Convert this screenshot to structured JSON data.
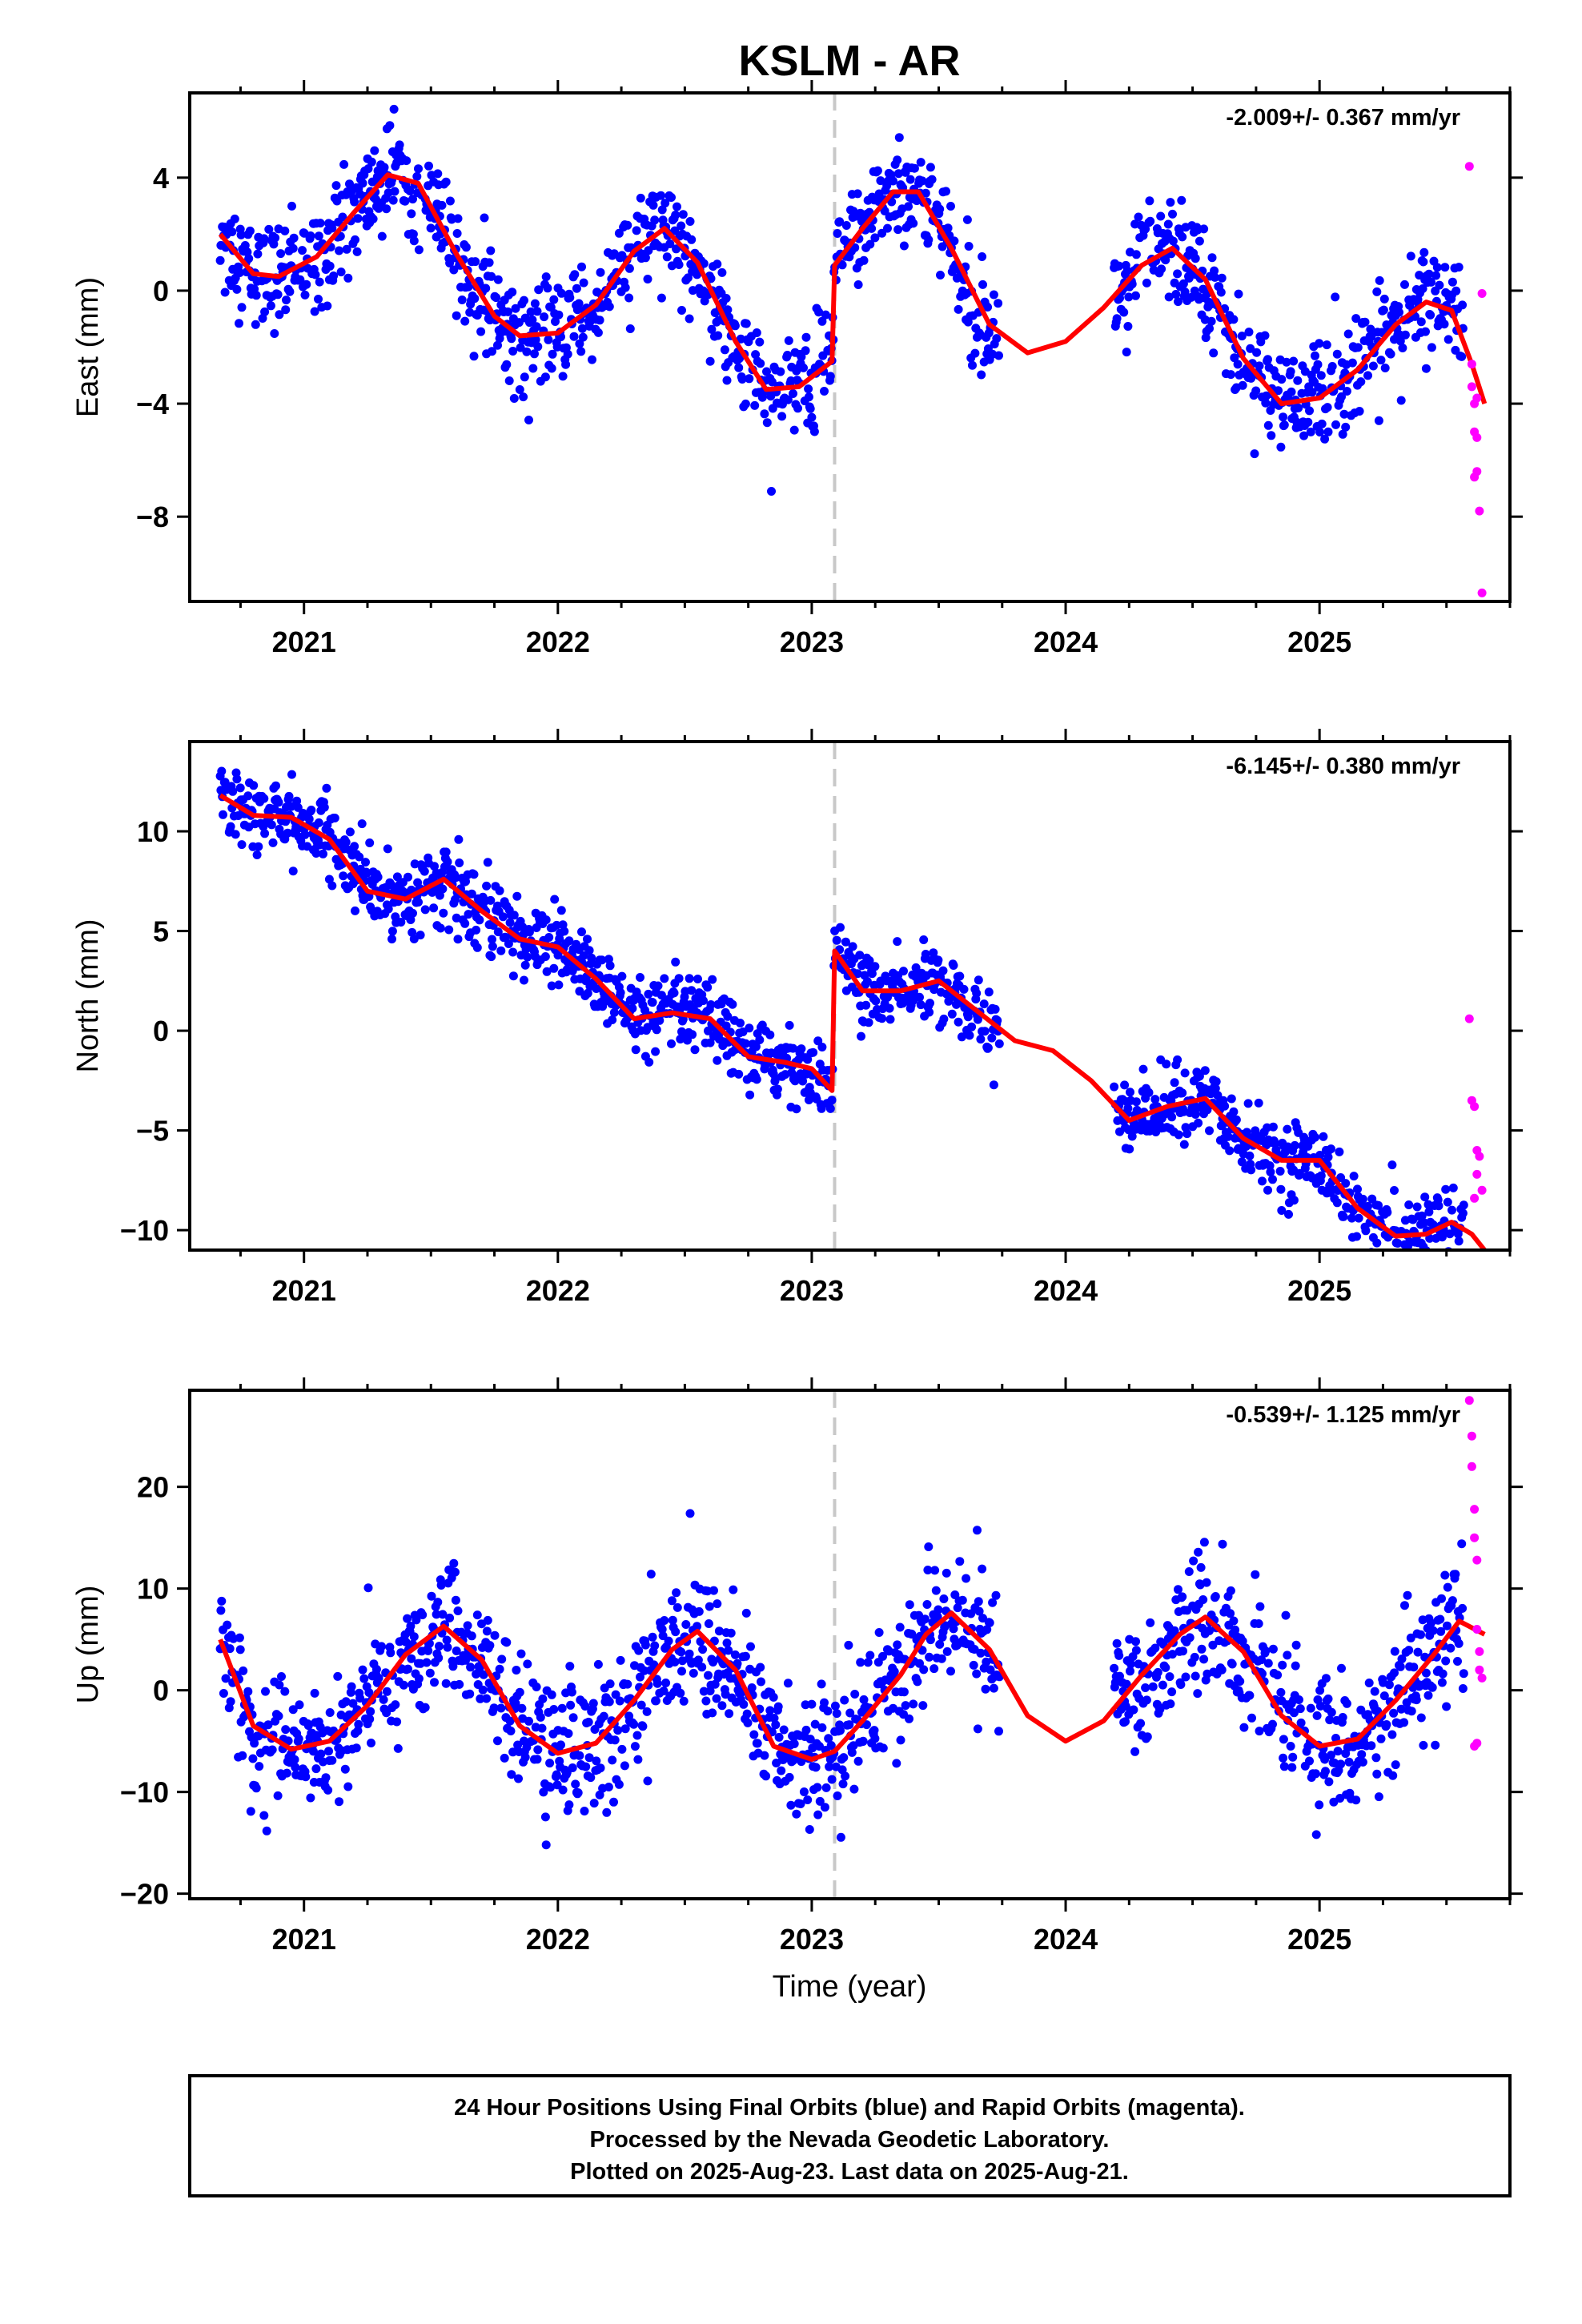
{
  "title": "KSLM - AR",
  "xlabel": "Time (year)",
  "footer": {
    "line1": "24 Hour Positions Using Final Orbits (blue) and Rapid Orbits (magenta).",
    "line2": "Processed by the Nevada Geodetic Laboratory.",
    "line3": "Plotted on 2025-Aug-23. Last data on 2025-Aug-21."
  },
  "colors": {
    "final_orbits": "#0000ff",
    "rapid_orbits": "#ff00ff",
    "model": "#ff0000",
    "event_line": "#c8c8c8"
  },
  "chart_data": [
    {
      "type": "scatter",
      "component": "East",
      "ylabel": "East (mm)",
      "rate": "-2.009+/- 0.367 mm/yr",
      "xlim": [
        2020.55,
        2025.75
      ],
      "ylim": [
        -11,
        7
      ],
      "xticks": [
        2021,
        2022,
        2023,
        2024,
        2025
      ],
      "xtick_labels": [
        "2021",
        "2022",
        "2023",
        "2024",
        "2025"
      ],
      "yticks": [
        4,
        0,
        -4,
        -8
      ],
      "ytick_labels": [
        "4",
        "0",
        "−4",
        "−8"
      ],
      "event_x": 2023.09,
      "gaps": [
        [
          2023.74,
          2024.19
        ]
      ],
      "series": [
        {
          "role": "final_orbits",
          "x_range": [
            2020.67,
            2025.57
          ],
          "trend": -2.009,
          "offset": 2.4,
          "amplitude": 2.6,
          "phase_peak": 0.42,
          "step": 3.5,
          "scatter": 0.9
        },
        {
          "role": "rapid_orbits",
          "x": [
            2025.59,
            2025.6,
            2025.6,
            2025.61,
            2025.61,
            2025.62,
            2025.62,
            2025.63,
            2025.64,
            2025.64,
            2025.62,
            2025.61
          ],
          "y": [
            4.4,
            -2.6,
            -3.4,
            -4.0,
            -5.0,
            -5.2,
            -6.4,
            -7.8,
            -10.7,
            -0.1,
            -3.8,
            -6.6
          ]
        },
        {
          "role": "model",
          "x": [
            2020.67,
            2020.8,
            2020.9,
            2021.05,
            2021.2,
            2021.33,
            2021.45,
            2021.6,
            2021.75,
            2021.85,
            2022.0,
            2022.15,
            2022.3,
            2022.42,
            2022.55,
            2022.7,
            2022.82,
            2022.95,
            2023.08,
            2023.09,
            2023.2,
            2023.32,
            2023.42,
            2023.55,
            2023.7,
            2023.85,
            2024.0,
            2024.15,
            2024.3,
            2024.42,
            2024.55,
            2024.7,
            2024.85,
            2025.0,
            2025.15,
            2025.3,
            2025.42,
            2025.52,
            2025.6,
            2025.65
          ],
          "y": [
            2.0,
            0.6,
            0.5,
            1.2,
            2.8,
            4.1,
            3.8,
            1.3,
            -0.9,
            -1.6,
            -1.5,
            -0.5,
            1.4,
            2.2,
            1.0,
            -1.8,
            -3.5,
            -3.4,
            -2.5,
            0.9,
            2.2,
            3.5,
            3.5,
            1.5,
            -1.2,
            -2.2,
            -1.8,
            -0.6,
            0.9,
            1.5,
            0.4,
            -2.4,
            -4.0,
            -3.8,
            -2.8,
            -1.2,
            -0.4,
            -0.7,
            -2.6,
            -4.0
          ]
        }
      ]
    },
    {
      "type": "scatter",
      "component": "North",
      "ylabel": "North (mm)",
      "rate": "-6.145+/- 0.380 mm/yr",
      "xlim": [
        2020.55,
        2025.75
      ],
      "ylim": [
        -11,
        14.5
      ],
      "xticks": [
        2021,
        2022,
        2023,
        2024,
        2025
      ],
      "xtick_labels": [
        "2021",
        "2022",
        "2023",
        "2024",
        "2025"
      ],
      "yticks": [
        10,
        5,
        0,
        -5,
        -10
      ],
      "ytick_labels": [
        "10",
        "5",
        "0",
        "−5",
        "−10"
      ],
      "event_x": 2023.09,
      "gaps": [
        [
          2023.74,
          2024.19
        ]
      ],
      "series": [
        {
          "role": "final_orbits",
          "x_range": [
            2020.67,
            2025.57
          ],
          "trend": -6.145,
          "offset": 12.5,
          "amplitude": 0.9,
          "phase_peak": 0.55,
          "step": 6.5,
          "scatter": 0.9
        },
        {
          "role": "rapid_orbits",
          "x": [
            2025.59,
            2025.6,
            2025.61,
            2025.62,
            2025.63,
            2025.64,
            2025.62,
            2025.61
          ],
          "y": [
            0.6,
            -3.5,
            -3.8,
            -6.0,
            -6.3,
            -8.0,
            -7.2,
            -8.4
          ]
        },
        {
          "role": "model",
          "x": [
            2020.67,
            2020.8,
            2020.95,
            2021.1,
            2021.25,
            2021.4,
            2021.55,
            2021.7,
            2021.85,
            2022.0,
            2022.15,
            2022.3,
            2022.45,
            2022.6,
            2022.75,
            2022.9,
            2023.0,
            2023.08,
            2023.09,
            2023.2,
            2023.35,
            2023.5,
            2023.65,
            2023.8,
            2023.95,
            2024.1,
            2024.25,
            2024.4,
            2024.55,
            2024.7,
            2024.85,
            2025.0,
            2025.15,
            2025.3,
            2025.42,
            2025.52,
            2025.6,
            2025.65
          ],
          "y": [
            11.8,
            10.8,
            10.7,
            9.6,
            7.0,
            6.6,
            7.6,
            6.0,
            4.6,
            4.2,
            2.6,
            0.6,
            0.9,
            0.6,
            -1.3,
            -1.6,
            -1.9,
            -3.0,
            4.0,
            2.0,
            2.0,
            2.5,
            1.0,
            -0.5,
            -1.0,
            -2.5,
            -4.5,
            -3.8,
            -3.4,
            -5.4,
            -6.5,
            -6.5,
            -8.9,
            -10.3,
            -10.2,
            -9.6,
            -10.2,
            -11.0
          ]
        }
      ]
    },
    {
      "type": "scatter",
      "component": "Up",
      "ylabel": "Up (mm)",
      "rate": "-0.539+/- 1.125 mm/yr",
      "xlim": [
        2020.55,
        2025.75
      ],
      "ylim": [
        -20.5,
        29.5
      ],
      "xticks": [
        2021,
        2022,
        2023,
        2024,
        2025
      ],
      "xtick_labels": [
        "2021",
        "2022",
        "2023",
        "2024",
        "2025"
      ],
      "yticks": [
        20,
        10,
        0,
        -10,
        -20
      ],
      "ytick_labels": [
        "20",
        "10",
        "0",
        "−10",
        "−20"
      ],
      "event_x": 2023.09,
      "gaps": [
        [
          2023.74,
          2024.19
        ]
      ],
      "series": [
        {
          "role": "final_orbits",
          "x_range": [
            2020.67,
            2025.57
          ],
          "trend": -0.539,
          "offset": 0.6,
          "amplitude": 6.3,
          "phase_peak": 0.58,
          "step": 0,
          "scatter": 3.2
        },
        {
          "role": "rapid_orbits",
          "x": [
            2025.59,
            2025.6,
            2025.6,
            2025.61,
            2025.61,
            2025.62,
            2025.62,
            2025.63,
            2025.63,
            2025.64,
            2025.62,
            2025.61
          ],
          "y": [
            28.5,
            25.0,
            22.0,
            17.8,
            15.0,
            12.8,
            6.0,
            3.8,
            2.0,
            1.2,
            -5.2,
            -5.5
          ]
        },
        {
          "role": "model",
          "x": [
            2020.67,
            2020.8,
            2020.95,
            2021.1,
            2021.25,
            2021.4,
            2021.55,
            2021.7,
            2021.85,
            2022.0,
            2022.15,
            2022.3,
            2022.45,
            2022.55,
            2022.7,
            2022.85,
            2023.0,
            2023.09,
            2023.2,
            2023.35,
            2023.45,
            2023.55,
            2023.7,
            2023.85,
            2024.0,
            2024.15,
            2024.3,
            2024.45,
            2024.55,
            2024.7,
            2024.85,
            2025.0,
            2025.15,
            2025.3,
            2025.45,
            2025.55,
            2025.65
          ],
          "y": [
            5.0,
            -3.5,
            -5.8,
            -5.0,
            -1.5,
            3.5,
            6.3,
            3.0,
            -3.5,
            -6.2,
            -5.2,
            -1.0,
            4.0,
            5.8,
            2.0,
            -5.5,
            -6.8,
            -6.0,
            -3.0,
            1.5,
            5.5,
            7.6,
            4.0,
            -2.5,
            -5.0,
            -3.0,
            1.5,
            5.5,
            7.2,
            3.8,
            -2.5,
            -5.5,
            -4.8,
            -1.0,
            3.5,
            6.8,
            5.5
          ]
        }
      ]
    }
  ]
}
